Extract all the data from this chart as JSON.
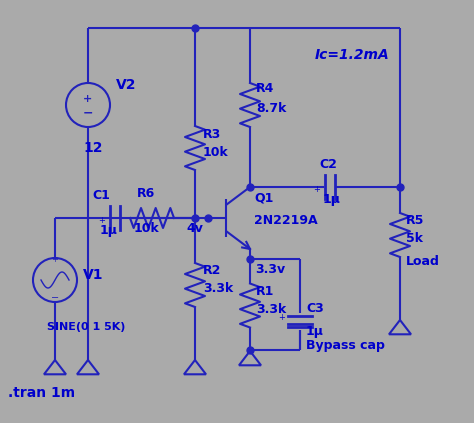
{
  "bg_color": "#aaaaaa",
  "line_color": "#2222bb",
  "text_color": "#0000cc",
  "fig_width": 4.74,
  "fig_height": 4.23,
  "dpi": 100,
  "xlim": [
    0,
    474
  ],
  "ylim": [
    0,
    423
  ],
  "annotations": {
    "Ic": "Ic=1.2mA",
    "tran": ".tran 1m",
    "sine": "SINE(0 1 5K)",
    "v2_val": "12",
    "v1_label": "V1",
    "v2_label": "V2",
    "r1_label": "R1",
    "r1_val": "3.3k",
    "r2_label": "R2",
    "r2_val": "3.3k",
    "r3_label": "R3",
    "r3_val": "10k",
    "r4_label": "R4",
    "r4_val": "8.7k",
    "r5_label": "R5",
    "r5_val": "5k",
    "r6_label": "R6",
    "r6_val": "10k",
    "c1_label": "C1",
    "c1_val": "1μ",
    "c2_label": "C2",
    "c2_val": "1μ",
    "c3_label": "C3",
    "c3_val": "1μ",
    "q1_label": "Q1",
    "q1_model": "2N2219A",
    "load_label": "Load",
    "bypass_label": "Bypass cap",
    "v_base": "4v",
    "v_emitter": "3.3v"
  }
}
